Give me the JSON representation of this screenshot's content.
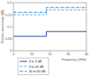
{
  "chart_data": {
    "type": "line",
    "y_label": "Relative uncertainty (dB)",
    "x_label": "Frequency (GHz)",
    "x": [
      0,
      18,
      18,
      40
    ],
    "series": [
      {
        "name": "0 to 3 dB",
        "color": "#1f3f99",
        "line_style": "solid",
        "values": [
          0.06,
          0.06,
          0.08,
          0.08
        ]
      },
      {
        "name": "3 to 40 dB",
        "color": "#5aa9e6",
        "line_style": "dashed",
        "values": [
          0.15,
          0.15,
          0.17,
          0.17
        ]
      },
      {
        "name": "40 to 60 dB",
        "color": "#2e7fbf",
        "line_style": "dashdot",
        "values": [
          0.16,
          0.16,
          0.18,
          0.18
        ]
      }
    ],
    "xlim": [
      0,
      40
    ],
    "xticks": [
      0,
      10,
      20,
      30,
      40
    ],
    "ylim": [
      0,
      0.2
    ],
    "yticks": [
      0,
      0.05,
      0.1,
      0.15,
      0.2
    ],
    "grid": false,
    "legend": "lower left"
  }
}
